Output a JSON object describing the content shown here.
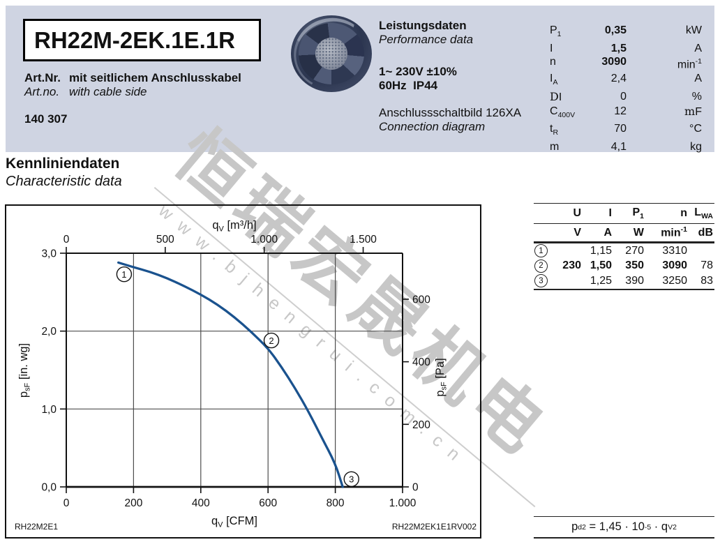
{
  "header": {
    "model": "RH22M-2EK.1E.1R",
    "art_label_de": "Art.Nr.",
    "art_desc_de": "mit seitlichem Anschlusskabel",
    "art_label_en": "Art.no.",
    "art_desc_en": "with cable side",
    "art_number": "140 307",
    "perf_title_de": "Leistungsdaten",
    "perf_title_en": "Performance data",
    "voltage": "1~ 230V ±10%",
    "freq_ip": "60Hz  IP44",
    "diagram_de": "Anschlussschaltbild 126XA",
    "diagram_en": "Connection diagram",
    "band_color": "#cfd4e2",
    "specs": [
      {
        "label_pre": "",
        "label": "P",
        "label_sub": "1",
        "value": "0,35",
        "unit_pre": "",
        "unit": "kW",
        "unit_sup": "",
        "bold": true
      },
      {
        "label_pre": "",
        "label": "I",
        "label_sub": "",
        "value": "1,5",
        "unit_pre": "",
        "unit": "A",
        "unit_sup": "",
        "bold": true
      },
      {
        "label_pre": "",
        "label": "n",
        "label_sub": "",
        "value": "3090",
        "unit_pre": "",
        "unit": "min",
        "unit_sup": "-1",
        "bold": true
      },
      {
        "label_pre": "",
        "label": "I",
        "label_sub": "A",
        "value": "2,4",
        "unit_pre": "",
        "unit": "A",
        "unit_sup": "",
        "bold": false
      },
      {
        "label_pre": "D",
        "label": "I",
        "label_sub": "",
        "value": "0",
        "unit_pre": "",
        "unit": "%",
        "unit_sup": "",
        "bold": false
      },
      {
        "label_pre": "",
        "label": "C",
        "label_sub": "400V",
        "value": "12",
        "unit_pre": "m",
        "unit": "F",
        "unit_sup": "",
        "bold": false
      },
      {
        "label_pre": "",
        "label": "t",
        "label_sub": "R",
        "value": "70",
        "unit_pre": "",
        "unit": "°C",
        "unit_sup": "",
        "bold": false
      },
      {
        "label_pre": "",
        "label": "m",
        "label_sub": "",
        "value": "4,1",
        "unit_pre": "",
        "unit": "kg",
        "unit_sup": "",
        "bold": false
      }
    ]
  },
  "section": {
    "title_de": "Kennliniendaten",
    "title_en": "Characteristic data"
  },
  "chart_data": {
    "type": "line",
    "x_bottom": {
      "sym": "q",
      "sub": "V",
      "rest": " [CFM]",
      "ticks": [
        0,
        200,
        400,
        600,
        800,
        1000
      ],
      "tick_labels": [
        "0",
        "200",
        "400",
        "600",
        "800",
        "1.000"
      ],
      "range": [
        0,
        1000
      ]
    },
    "x_top": {
      "sym": "q",
      "sub": "V",
      "rest": " [m³/h]",
      "ticks": [
        0,
        500,
        1000,
        1500
      ],
      "tick_labels": [
        "0",
        "500",
        "1.000",
        "1.500"
      ],
      "cfm_per_m3h": 0.58858
    },
    "y_left": {
      "sym": "p",
      "sub": "sF",
      "rest": " [in. wg]",
      "ticks": [
        0,
        1,
        2,
        3
      ],
      "tick_labels": [
        "0,0",
        "1,0",
        "2,0",
        "3,0"
      ],
      "range": [
        0,
        3
      ]
    },
    "y_right": {
      "sym": "p",
      "sub": "sF",
      "rest": " [Pa]",
      "ticks": [
        0,
        200,
        400,
        600
      ],
      "tick_labels": [
        "0",
        "200",
        "400",
        "600"
      ],
      "pa_per_inwg": 249
    },
    "grid": {
      "x_cfm": [
        200,
        400,
        600,
        800
      ],
      "y_inwg": [
        1,
        2
      ]
    },
    "series": [
      {
        "name": "characteristic-curve",
        "color": "#1a528e",
        "points": [
          [
            155,
            2.88
          ],
          [
            200,
            2.82
          ],
          [
            250,
            2.76
          ],
          [
            300,
            2.68
          ],
          [
            350,
            2.58
          ],
          [
            400,
            2.47
          ],
          [
            450,
            2.34
          ],
          [
            500,
            2.18
          ],
          [
            550,
            1.99
          ],
          [
            600,
            1.78
          ],
          [
            640,
            1.54
          ],
          [
            680,
            1.27
          ],
          [
            720,
            0.97
          ],
          [
            760,
            0.63
          ],
          [
            800,
            0.3
          ],
          [
            822,
            0
          ]
        ]
      }
    ],
    "markers": [
      {
        "label": "1",
        "cfm": 172,
        "inwg": 2.73
      },
      {
        "label": "2",
        "cfm": 610,
        "inwg": 1.88
      },
      {
        "label": "3",
        "cfm": 848,
        "inwg": 0.1
      }
    ]
  },
  "op_table": {
    "headers": [
      {
        "t": "U",
        "s": ""
      },
      {
        "t": "I",
        "s": ""
      },
      {
        "t": "P",
        "s": "1"
      },
      {
        "t": "n",
        "s": ""
      },
      {
        "t": "L",
        "s": "WA"
      }
    ],
    "units": [
      {
        "t": "V",
        "sup": ""
      },
      {
        "t": "A",
        "sup": ""
      },
      {
        "t": "W",
        "sup": ""
      },
      {
        "t": "min",
        "sup": "-1"
      },
      {
        "t": "dB",
        "sup": ""
      }
    ],
    "rows": [
      {
        "badge": "1",
        "cells": [
          "",
          "1,15",
          "270",
          "3310",
          ""
        ],
        "bold": false
      },
      {
        "badge": "2",
        "cells": [
          "230",
          "1,50",
          "350",
          "3090",
          "78"
        ],
        "bold": true
      },
      {
        "badge": "3",
        "cells": [
          "",
          "1,25",
          "390",
          "3250",
          "83"
        ],
        "bold": false
      }
    ]
  },
  "formula": {
    "sym": "p",
    "sym_sub": "d2",
    "mid": " = 1,45 · 10",
    "sup": "-5",
    "mid2": " · q",
    "sub2": "V",
    "sup2": "2"
  },
  "footer": {
    "left_code": "RH22M2E1",
    "right_code": "RH22M2EK1E1RV002"
  },
  "watermark": {
    "cjk": "恒瑞宏晟机电",
    "url": "www.bjhengrui.com.cn"
  }
}
